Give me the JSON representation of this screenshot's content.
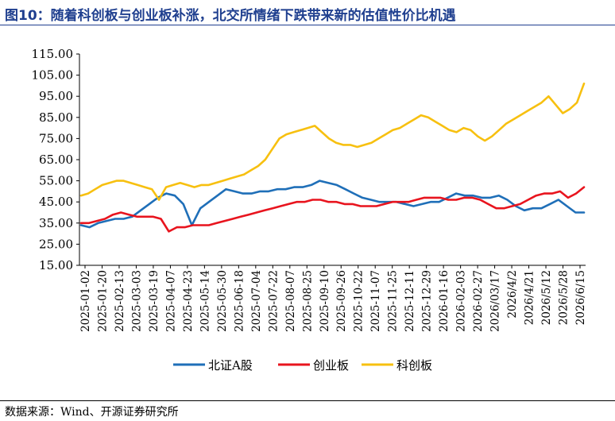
{
  "figure_title": "图10：随着科创板与创业板补涨，北交所情绪下跌带来新的估值性价比机遇",
  "source_note": "数据来源：Wind、开源证券研究所",
  "colors": {
    "title": "#1f3f8f",
    "bse": "#1f6fb8",
    "chinext": "#e8141e",
    "star": "#f7c010"
  },
  "chart_data": {
    "type": "line",
    "title": "",
    "xlabel": "",
    "ylabel": "",
    "ylim": [
      15,
      115
    ],
    "yticks": [
      "115.00",
      "105.00",
      "95.00",
      "85.00",
      "75.00",
      "65.00",
      "55.00",
      "45.00",
      "35.00",
      "25.00",
      "15.00"
    ],
    "x_ticks": [
      "2025-01-02",
      "2025-01-20",
      "2025-02-13",
      "2025-03-03",
      "2025-03-19",
      "2025-04-07",
      "2025-04-23",
      "2025-05-14",
      "2025-05-30",
      "2025-06-18",
      "2025-07-04",
      "2025-07-22",
      "2025-08-07",
      "2025-08-25",
      "2025-09-10",
      "2025-09-26",
      "2025-10-22",
      "2025-11-07",
      "2025-11-25",
      "2025-12-11",
      "2025-12-29",
      "2026-01-16",
      "2026-02-03",
      "2026-02-27",
      "2026/03/17",
      "2026/4/2",
      "2026/4/21",
      "2026/5/12",
      "2026/5/28",
      "2026/6/15"
    ],
    "legend_position": "bottom",
    "grid": false,
    "series": [
      {
        "name": "北证A股",
        "color": "#1f6fb8",
        "values": [
          34,
          33,
          35,
          36,
          37,
          37,
          38,
          41,
          44,
          47,
          49,
          48,
          44,
          34,
          42,
          45,
          48,
          51,
          50,
          49,
          49,
          50,
          50,
          51,
          51,
          52,
          52,
          53,
          55,
          54,
          53,
          51,
          49,
          47,
          46,
          45,
          45,
          45,
          44,
          43,
          44,
          45,
          45,
          47,
          49,
          48,
          48,
          47,
          47,
          48,
          46,
          43,
          41,
          42,
          42,
          44,
          46,
          43,
          40,
          40
        ]
      },
      {
        "name": "创业板",
        "color": "#e8141e",
        "values": [
          35,
          35,
          36,
          37,
          39,
          40,
          39,
          38,
          38,
          38,
          37,
          31,
          33,
          33,
          34,
          34,
          34,
          35,
          36,
          37,
          38,
          39,
          40,
          41,
          42,
          43,
          44,
          45,
          45,
          46,
          46,
          45,
          45,
          44,
          44,
          43,
          43,
          43,
          44,
          45,
          45,
          45,
          46,
          47,
          47,
          47,
          46,
          46,
          47,
          47,
          46,
          44,
          42,
          42,
          43,
          44,
          46,
          48,
          49,
          49,
          50,
          47,
          49,
          52
        ]
      },
      {
        "name": "科创板",
        "color": "#f7c010",
        "values": [
          48,
          49,
          51,
          53,
          54,
          55,
          55,
          54,
          53,
          52,
          51,
          46,
          52,
          53,
          54,
          53,
          52,
          53,
          53,
          54,
          55,
          56,
          57,
          58,
          60,
          62,
          65,
          70,
          75,
          77,
          78,
          79,
          80,
          81,
          78,
          75,
          73,
          72,
          72,
          71,
          72,
          73,
          75,
          77,
          79,
          80,
          82,
          84,
          86,
          85,
          83,
          81,
          79,
          78,
          80,
          79,
          76,
          74,
          76,
          79,
          82,
          84,
          86,
          88,
          90,
          92,
          95,
          91,
          87,
          89,
          92,
          101
        ]
      }
    ]
  }
}
